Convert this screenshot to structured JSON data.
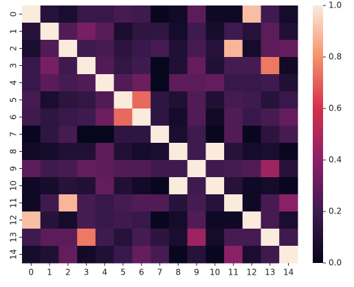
{
  "chart_data": {
    "type": "heatmap",
    "x_categories": [
      "0",
      "1",
      "2",
      "3",
      "4",
      "5",
      "6",
      "7",
      "8",
      "9",
      "10",
      "11",
      "12",
      "13",
      "14"
    ],
    "y_categories": [
      "0",
      "1",
      "2",
      "3",
      "4",
      "5",
      "6",
      "7",
      "8",
      "9",
      "10",
      "11",
      "12",
      "13",
      "14"
    ],
    "values": [
      [
        1,
        0.12,
        0.08,
        0.18,
        0.18,
        0.22,
        0.2,
        0.02,
        0.05,
        0.28,
        0.04,
        0.04,
        0.9,
        0.2,
        0.06
      ],
      [
        0.12,
        1,
        0.25,
        0.35,
        0.27,
        0.08,
        0.15,
        0.15,
        0.06,
        0.2,
        0.07,
        0.2,
        0.12,
        0.28,
        0.1
      ],
      [
        0.08,
        0.25,
        1,
        0.2,
        0.22,
        0.14,
        0.18,
        0.22,
        0.1,
        0.22,
        0.12,
        0.88,
        0.06,
        0.28,
        0.3
      ],
      [
        0.18,
        0.35,
        0.2,
        1,
        0.25,
        0.16,
        0.2,
        0.01,
        0.1,
        0.3,
        0.1,
        0.22,
        0.22,
        0.75,
        0.05
      ],
      [
        0.18,
        0.27,
        0.22,
        0.25,
        1,
        0.25,
        0.32,
        0.01,
        0.28,
        0.28,
        0.3,
        0.18,
        0.18,
        0.2,
        0.1
      ],
      [
        0.22,
        0.08,
        0.14,
        0.16,
        0.25,
        1,
        0.72,
        0.15,
        0.1,
        0.25,
        0.1,
        0.22,
        0.2,
        0.12,
        0.18
      ],
      [
        0.2,
        0.15,
        0.18,
        0.2,
        0.32,
        0.72,
        1,
        0.15,
        0.06,
        0.25,
        0.05,
        0.25,
        0.18,
        0.22,
        0.3
      ],
      [
        0.02,
        0.15,
        0.22,
        0.01,
        0.01,
        0.15,
        0.15,
        1,
        0.08,
        0.2,
        0.02,
        0.25,
        0.02,
        0.14,
        0.22
      ],
      [
        0.05,
        0.06,
        0.1,
        0.1,
        0.28,
        0.1,
        0.06,
        0.08,
        1,
        0.2,
        1,
        0.12,
        0.06,
        0.08,
        0.02
      ],
      [
        0.28,
        0.2,
        0.22,
        0.3,
        0.28,
        0.25,
        0.25,
        0.2,
        0.2,
        1,
        0.2,
        0.22,
        0.25,
        0.45,
        0.12
      ],
      [
        0.04,
        0.07,
        0.12,
        0.1,
        0.3,
        0.1,
        0.05,
        0.02,
        1,
        0.2,
        1,
        0.12,
        0.04,
        0.06,
        0.02
      ],
      [
        0.04,
        0.2,
        0.88,
        0.22,
        0.18,
        0.22,
        0.25,
        0.25,
        0.12,
        0.22,
        0.12,
        1,
        0.04,
        0.22,
        0.4
      ],
      [
        0.9,
        0.12,
        0.06,
        0.22,
        0.18,
        0.2,
        0.18,
        0.02,
        0.06,
        0.25,
        0.04,
        0.04,
        1,
        0.22,
        0.08
      ],
      [
        0.2,
        0.28,
        0.28,
        0.75,
        0.2,
        0.12,
        0.22,
        0.14,
        0.08,
        0.45,
        0.06,
        0.22,
        0.22,
        1,
        0.2
      ],
      [
        0.06,
        0.1,
        0.3,
        0.05,
        0.1,
        0.18,
        0.3,
        0.22,
        0.02,
        0.12,
        0.02,
        0.4,
        0.08,
        0.2,
        1
      ]
    ],
    "colorscale": [
      "#03051a",
      "#3e1a4f",
      "#8a2068",
      "#d42f4c",
      "#f6916a",
      "#faebdd"
    ],
    "zlim": [
      0,
      1
    ],
    "zticks": [
      {
        "value": 0,
        "label": "0.0"
      },
      0.2,
      0.4,
      0.6,
      0.8,
      {
        "value": 1,
        "label": "1.0"
      }
    ]
  }
}
